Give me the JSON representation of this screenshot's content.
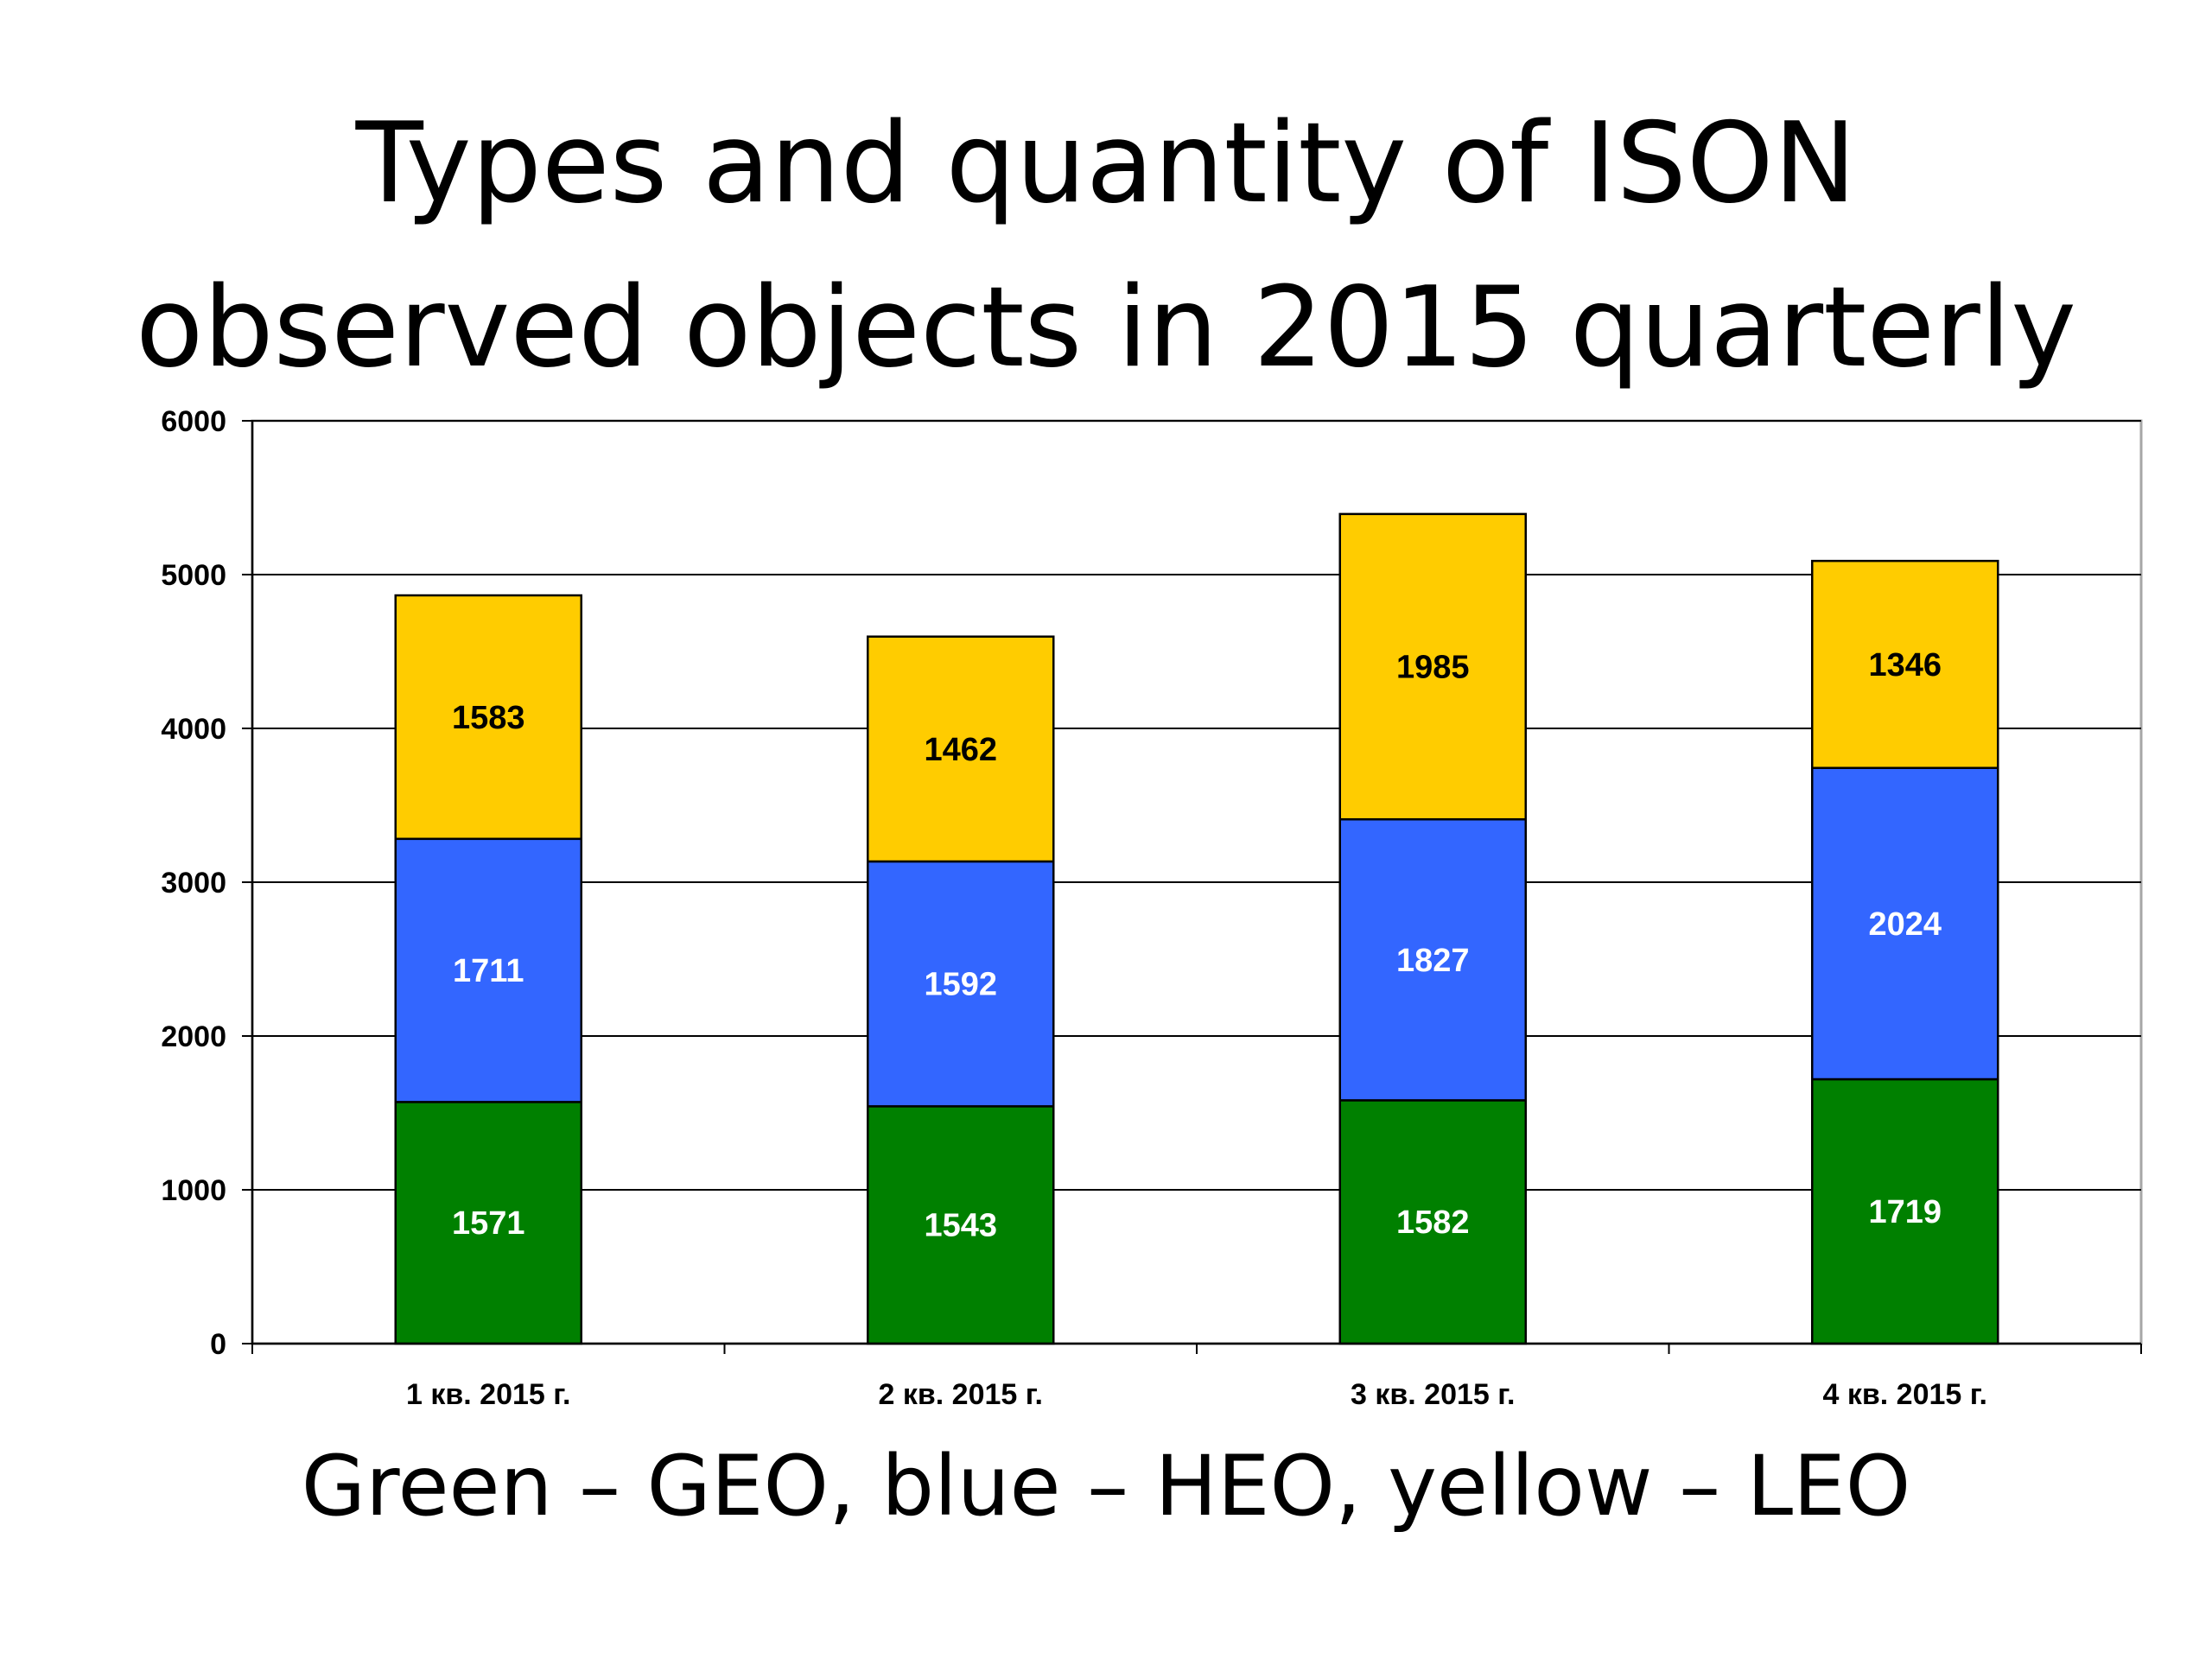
{
  "chart_data": {
    "type": "bar",
    "stacked": true,
    "title": "Types and quantity of ISON\nobserved objects in 2015 quarterly",
    "caption": "Green – GEO, blue – HEO, yellow – LEO",
    "categories": [
      "1 кв. 2015 г.",
      "2 кв. 2015 г.",
      "3 кв. 2015 г.",
      "4 кв. 2015 г."
    ],
    "series": [
      {
        "key": "geo",
        "color": "#008000",
        "label_color": "#ffffff",
        "values": [
          1571,
          1543,
          1582,
          1719
        ]
      },
      {
        "key": "heo",
        "color": "#3366ff",
        "label_color": "#ffffff",
        "values": [
          1711,
          1592,
          1827,
          2024
        ]
      },
      {
        "key": "leo",
        "color": "#ffcc00",
        "label_color": "#000000",
        "values": [
          1583,
          1462,
          1985,
          1346
        ]
      }
    ],
    "ylim": [
      0,
      6000
    ],
    "yticks": [
      0,
      1000,
      2000,
      3000,
      4000,
      5000,
      6000
    ],
    "grid": true,
    "xlabel": "",
    "ylabel": ""
  }
}
